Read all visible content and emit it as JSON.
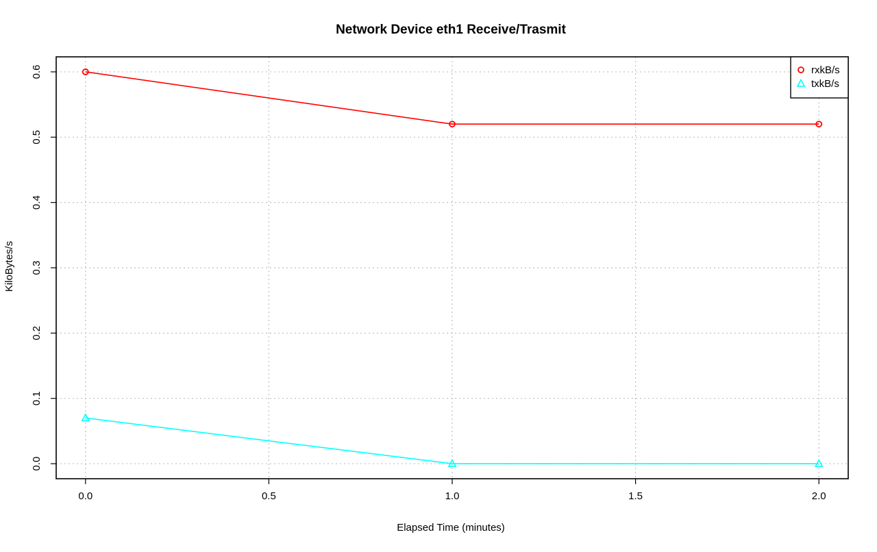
{
  "chart_data": {
    "type": "line",
    "title": "Network Device eth1 Receive/Trasmit",
    "xlabel": "Elapsed Time (minutes)",
    "ylabel": "KiloBytes/s",
    "xlim": [
      -0.08,
      2.08
    ],
    "ylim": [
      -0.023,
      0.623
    ],
    "xticks": [
      0.0,
      0.5,
      1.0,
      1.5,
      2.0
    ],
    "xtick_labels": [
      "0.0",
      "0.5",
      "1.0",
      "1.5",
      "2.0"
    ],
    "yticks": [
      0.0,
      0.1,
      0.2,
      0.3,
      0.4,
      0.5,
      0.6
    ],
    "ytick_labels": [
      "0.0",
      "0.1",
      "0.2",
      "0.3",
      "0.4",
      "0.5",
      "0.6"
    ],
    "grid": true,
    "legend_position": "top-right",
    "x": [
      0.0,
      1.0,
      2.0
    ],
    "series": [
      {
        "name": "rxkB/s",
        "values": [
          0.6,
          0.52,
          0.52
        ],
        "color": "#ff0000",
        "marker": "circle"
      },
      {
        "name": "txkB/s",
        "values": [
          0.07,
          0.0,
          0.0
        ],
        "color": "#00ffff",
        "marker": "triangle"
      }
    ]
  }
}
